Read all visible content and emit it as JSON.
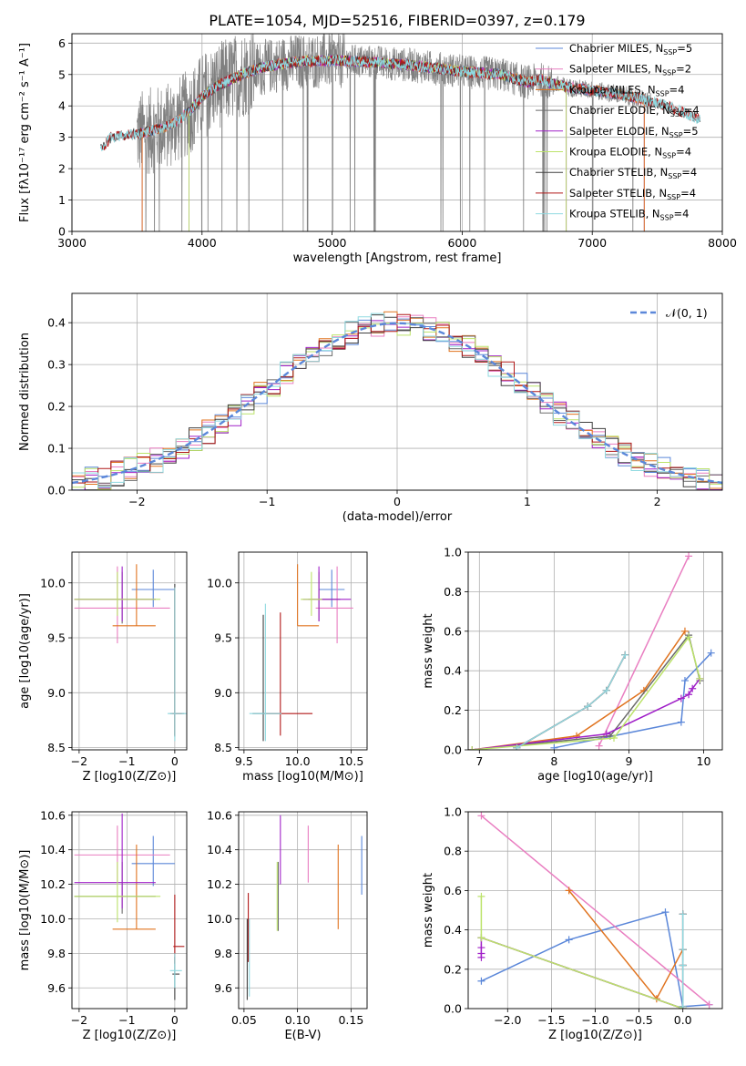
{
  "figure_title": "PLATE=1054, MJD=52516, FIBERID=0397, z=0.179",
  "colors": {
    "chabrier_miles": "#5b87d9",
    "salpeter_miles": "#e97ec1",
    "kroupa_miles": "#e0731f",
    "chabrier_elodie": "#6b6b6b",
    "salpeter_elodie": "#a020c8",
    "kroupa_elodie": "#bce36a",
    "chabrier_stelib": "#404040",
    "salpeter_stelib": "#b01818",
    "kroupa_stelib": "#8fd9e0",
    "data": "#808080",
    "gaussian": "#5b87d9",
    "grid": "#b0b0b0"
  },
  "legend": [
    {
      "text": "Chabrier MILES, N",
      "sub": "SSP",
      "tail": "=5",
      "color": "chabrier_miles"
    },
    {
      "text": "Salpeter MILES, N",
      "sub": "SSP",
      "tail": "=2",
      "color": "salpeter_miles"
    },
    {
      "text": "Kroupa MILES, N",
      "sub": "SSP",
      "tail": "=4",
      "color": "kroupa_miles"
    },
    {
      "text": "Chabrier ELODIE, N",
      "sub": "SSP",
      "tail": "=4",
      "color": "chabrier_elodie"
    },
    {
      "text": "Salpeter ELODIE, N",
      "sub": "SSP",
      "tail": "=5",
      "color": "salpeter_elodie"
    },
    {
      "text": "Kroupa ELODIE, N",
      "sub": "SSP",
      "tail": "=4",
      "color": "kroupa_elodie"
    },
    {
      "text": "Chabrier STELIB, N",
      "sub": "SSP",
      "tail": "=4",
      "color": "chabrier_stelib"
    },
    {
      "text": "Salpeter STELIB, N",
      "sub": "SSP",
      "tail": "=4",
      "color": "salpeter_stelib"
    },
    {
      "text": "Kroupa STELIB, N",
      "sub": "SSP",
      "tail": "=4",
      "color": "kroupa_stelib"
    }
  ],
  "gauss_legend": "𝒩(0, 1)",
  "chart_data": [
    {
      "id": "spectrum",
      "type": "line",
      "xlabel": "wavelength [Angstrom, rest frame]",
      "ylabel": "Flux [fλ10⁻¹⁷ erg cm⁻² s⁻¹ A⁻¹]",
      "xlim": [
        3000,
        8000
      ],
      "ylim": [
        0,
        6.3
      ],
      "xticks": [
        3000,
        4000,
        5000,
        6000,
        7000,
        8000
      ],
      "yticks": [
        0,
        1,
        2,
        3,
        4,
        5,
        6
      ],
      "continuum": {
        "x": [
          3220,
          3300,
          3400,
          3500,
          3600,
          3700,
          3800,
          3900,
          4000,
          4100,
          4200,
          4300,
          4400,
          4500,
          4700,
          5000,
          5300,
          5600,
          6000,
          6300,
          6500,
          6600,
          6700,
          6800,
          7000,
          7300,
          7500,
          7700,
          7830
        ],
        "y": [
          2.6,
          3.0,
          3.05,
          3.1,
          3.2,
          3.3,
          3.5,
          3.8,
          4.3,
          4.6,
          4.8,
          5.0,
          5.15,
          5.25,
          5.4,
          5.45,
          5.4,
          5.3,
          5.1,
          5.0,
          4.75,
          4.85,
          4.7,
          4.6,
          4.5,
          4.3,
          4.1,
          3.8,
          3.55
        ]
      }
    },
    {
      "id": "residuals",
      "type": "step",
      "xlabel": "(data-model)/error",
      "ylabel": "Normed distribution",
      "xlim": [
        -2.5,
        2.5
      ],
      "ylim": [
        0,
        0.47
      ],
      "xticks": [
        -2,
        -1,
        0,
        1,
        2
      ],
      "yticks": [
        0.0,
        0.1,
        0.2,
        0.3,
        0.4
      ],
      "gaussian": {
        "mu": 0,
        "sigma": 1
      }
    },
    {
      "id": "age_vs_Z",
      "type": "errorbar",
      "xlabel": "Z [log10(Z/Z⊙)]",
      "ylabel": "age  [log10(age/yr)]",
      "xlim": [
        -2.15,
        0.25
      ],
      "ylim": [
        8.48,
        10.28
      ],
      "xticks": [
        -2,
        -1,
        0
      ],
      "yticks": [
        8.5,
        9.0,
        9.5,
        10.0
      ],
      "points": [
        {
          "s": "chabrier_miles",
          "x": -0.45,
          "xerr": [
            0.45,
            0.45
          ],
          "y": 9.94,
          "yerr": [
            0.16,
            0.18
          ]
        },
        {
          "s": "salpeter_miles",
          "x": -1.2,
          "xerr": [
            0.9,
            1.1
          ],
          "y": 9.77,
          "yerr": [
            0.32,
            0.38
          ]
        },
        {
          "s": "kroupa_miles",
          "x": -0.8,
          "xerr": [
            0.5,
            0.4
          ],
          "y": 9.61,
          "yerr": [
            0.0,
            0.56
          ]
        },
        {
          "s": "chabrier_elodie",
          "x": -1.1,
          "xerr": [
            1.0,
            0.7
          ],
          "y": 9.85,
          "yerr": [
            0.22,
            0.25
          ]
        },
        {
          "s": "salpeter_elodie",
          "x": -1.1,
          "xerr": [
            1.0,
            0.7
          ],
          "y": 9.85,
          "yerr": [
            0.2,
            0.3
          ]
        },
        {
          "s": "kroupa_elodie",
          "x": -1.2,
          "xerr": [
            0.9,
            0.9
          ],
          "y": 9.85,
          "yerr": [
            0.15,
            0.25
          ]
        },
        {
          "s": "chabrier_stelib",
          "x": 0.0,
          "xerr": [
            0.1,
            0.2
          ],
          "y": 8.81,
          "yerr": [
            0.21,
            1.18
          ]
        },
        {
          "s": "salpeter_stelib",
          "x": 0.0,
          "xerr": [
            0.05,
            0.15
          ],
          "y": 8.81,
          "yerr": [
            0.2,
            1.15
          ]
        },
        {
          "s": "kroupa_stelib",
          "x": 0.0,
          "xerr": [
            0.15,
            0.25
          ],
          "y": 8.81,
          "yerr": [
            0.25,
            1.15
          ]
        }
      ]
    },
    {
      "id": "age_vs_mass",
      "type": "errorbar",
      "xlabel": "mass [log10(M/M⊙)]",
      "ylabel": "",
      "xlim": [
        9.45,
        10.65
      ],
      "ylim": [
        8.48,
        10.28
      ],
      "xticks": [
        9.5,
        10.0,
        10.5
      ],
      "yticks": [
        8.5,
        9.0,
        9.5,
        10.0
      ],
      "points": [
        {
          "s": "chabrier_miles",
          "x": 10.32,
          "xerr": [
            0.12,
            0.12
          ],
          "y": 9.94,
          "yerr": [
            0.16,
            0.18
          ]
        },
        {
          "s": "salpeter_miles",
          "x": 10.37,
          "xerr": [
            0.2,
            0.15
          ],
          "y": 9.77,
          "yerr": [
            0.32,
            0.38
          ]
        },
        {
          "s": "kroupa_miles",
          "x": 10.0,
          "xerr": [
            0.0,
            0.2
          ],
          "y": 9.61,
          "yerr": [
            0.0,
            0.56
          ]
        },
        {
          "s": "chabrier_elodie",
          "x": 10.2,
          "xerr": [
            0.1,
            0.2
          ],
          "y": 9.85,
          "yerr": [
            0.2,
            0.25
          ]
        },
        {
          "s": "salpeter_elodie",
          "x": 10.2,
          "xerr": [
            0.15,
            0.3
          ],
          "y": 9.85,
          "yerr": [
            0.2,
            0.3
          ]
        },
        {
          "s": "kroupa_elodie",
          "x": 10.13,
          "xerr": [
            0.1,
            0.1
          ],
          "y": 9.85,
          "yerr": [
            0.15,
            0.25
          ]
        },
        {
          "s": "chabrier_stelib",
          "x": 9.68,
          "xerr": [
            0.1,
            0.15
          ],
          "y": 8.81,
          "yerr": [
            0.25,
            0.9
          ]
        },
        {
          "s": "salpeter_stelib",
          "x": 9.84,
          "xerr": [
            0.15,
            0.3
          ],
          "y": 8.81,
          "yerr": [
            0.2,
            0.92
          ]
        },
        {
          "s": "kroupa_stelib",
          "x": 9.7,
          "xerr": [
            0.15,
            0.15
          ],
          "y": 8.81,
          "yerr": [
            0.25,
            1.0
          ]
        }
      ]
    },
    {
      "id": "massweight_vs_age",
      "type": "line",
      "xlabel": "age  [log10(age/yr)]",
      "ylabel": "mass weight",
      "xlim": [
        6.85,
        10.25
      ],
      "ylim": [
        0,
        1
      ],
      "xticks": [
        7,
        8,
        9,
        10
      ],
      "yticks": [
        0.0,
        0.2,
        0.4,
        0.6,
        0.8,
        1.0
      ],
      "series": [
        {
          "s": "chabrier_miles",
          "x": [
            8.0,
            9.7,
            9.75,
            10.1
          ],
          "y": [
            0.01,
            0.14,
            0.35,
            0.49
          ]
        },
        {
          "s": "salpeter_miles",
          "x": [
            8.6,
            9.8
          ],
          "y": [
            0.02,
            0.98
          ]
        },
        {
          "s": "kroupa_miles",
          "x": [
            6.9,
            8.3,
            9.2,
            9.75
          ],
          "y": [
            0.0,
            0.07,
            0.3,
            0.6
          ]
        },
        {
          "s": "chabrier_elodie",
          "x": [
            6.9,
            8.75,
            9.8,
            9.95
          ],
          "y": [
            0.0,
            0.07,
            0.58,
            0.35
          ]
        },
        {
          "s": "salpeter_elodie",
          "x": [
            6.9,
            8.7,
            9.7,
            9.8,
            9.85,
            9.95
          ],
          "y": [
            0.0,
            0.08,
            0.26,
            0.28,
            0.31,
            0.36
          ]
        },
        {
          "s": "kroupa_elodie",
          "x": [
            6.9,
            8.8,
            9.8,
            9.95
          ],
          "y": [
            0.0,
            0.06,
            0.57,
            0.36
          ]
        },
        {
          "s": "chabrier_stelib",
          "x": [
            7.5,
            8.45,
            8.7,
            8.95
          ],
          "y": [
            0.01,
            0.22,
            0.3,
            0.48
          ]
        },
        {
          "s": "salpeter_stelib",
          "x": [
            7.5,
            8.45,
            8.7,
            8.95
          ],
          "y": [
            0.01,
            0.22,
            0.3,
            0.48
          ]
        },
        {
          "s": "kroupa_stelib",
          "x": [
            7.5,
            8.45,
            8.7,
            8.95
          ],
          "y": [
            0.01,
            0.22,
            0.3,
            0.48
          ]
        }
      ]
    },
    {
      "id": "mass_vs_Z",
      "type": "errorbar",
      "xlabel": "Z [log10(Z/Z⊙)]",
      "ylabel": "mass [log10(M/M⊙)]",
      "xlim": [
        -2.15,
        0.25
      ],
      "ylim": [
        9.48,
        10.62
      ],
      "xticks": [
        -2,
        -1,
        0
      ],
      "yticks": [
        9.6,
        9.8,
        10.0,
        10.2,
        10.4,
        10.6
      ],
      "points": [
        {
          "s": "chabrier_miles",
          "x": -0.45,
          "xerr": [
            0.45,
            0.45
          ],
          "y": 10.32,
          "yerr": [
            0.13,
            0.16
          ]
        },
        {
          "s": "salpeter_miles",
          "x": -1.2,
          "xerr": [
            0.9,
            1.1
          ],
          "y": 10.37,
          "yerr": [
            0.16,
            0.17
          ]
        },
        {
          "s": "kroupa_miles",
          "x": -0.8,
          "xerr": [
            0.5,
            0.4
          ],
          "y": 9.94,
          "yerr": [
            0.0,
            0.49
          ]
        },
        {
          "s": "chabrier_elodie",
          "x": -1.1,
          "xerr": [
            1.0,
            0.7
          ],
          "y": 10.13,
          "yerr": [
            0.1,
            0.2
          ]
        },
        {
          "s": "salpeter_elodie",
          "x": -1.1,
          "xerr": [
            1.0,
            0.7
          ],
          "y": 10.21,
          "yerr": [
            0.15,
            0.4
          ]
        },
        {
          "s": "kroupa_elodie",
          "x": -1.2,
          "xerr": [
            0.9,
            0.9
          ],
          "y": 10.13,
          "yerr": [
            0.15,
            0.2
          ]
        },
        {
          "s": "chabrier_stelib",
          "x": 0.0,
          "xerr": [
            0.05,
            0.1
          ],
          "y": 9.68,
          "yerr": [
            0.15,
            0.1
          ]
        },
        {
          "s": "salpeter_stelib",
          "x": 0.0,
          "xerr": [
            0.03,
            0.2
          ],
          "y": 9.84,
          "yerr": [
            0.1,
            0.3
          ]
        },
        {
          "s": "kroupa_stelib",
          "x": 0.0,
          "xerr": [
            0.1,
            0.15
          ],
          "y": 9.7,
          "yerr": [
            0.1,
            0.1
          ]
        }
      ]
    },
    {
      "id": "mass_vs_ebv",
      "type": "errorbar",
      "xlabel": "E(B-V)",
      "ylabel": "",
      "xlim": [
        0.045,
        0.165
      ],
      "ylim": [
        9.48,
        10.62
      ],
      "xticks": [
        0.05,
        0.1,
        0.15
      ],
      "yticks": [
        9.6,
        9.8,
        10.0,
        10.2,
        10.4,
        10.6
      ],
      "points": [
        {
          "s": "chabrier_miles",
          "x": 0.16,
          "y": 10.32,
          "yerr": [
            0.18,
            0.16
          ]
        },
        {
          "s": "salpeter_miles",
          "x": 0.11,
          "y": 10.37,
          "yerr": [
            0.16,
            0.17
          ]
        },
        {
          "s": "kroupa_miles",
          "x": 0.138,
          "y": 10.19,
          "yerr": [
            0.25,
            0.24
          ]
        },
        {
          "s": "chabrier_elodie",
          "x": 0.082,
          "y": 10.13,
          "yerr": [
            0.2,
            0.2
          ]
        },
        {
          "s": "salpeter_elodie",
          "x": 0.084,
          "y": 10.37,
          "yerr": [
            0.17,
            0.23
          ]
        },
        {
          "s": "kroupa_elodie",
          "x": 0.081,
          "y": 10.13,
          "yerr": [
            0.2,
            0.2
          ]
        },
        {
          "s": "chabrier_stelib",
          "x": 0.053,
          "y": 9.75,
          "yerr": [
            0.22,
            0.25
          ]
        },
        {
          "s": "salpeter_stelib",
          "x": 0.054,
          "y": 9.9,
          "yerr": [
            0.15,
            0.25
          ]
        },
        {
          "s": "kroupa_stelib",
          "x": 0.055,
          "y": 9.75,
          "yerr": [
            0.2,
            0.25
          ]
        }
      ]
    },
    {
      "id": "massweight_vs_Z",
      "type": "line",
      "xlabel": "Z [log10(Z/Z⊙)]",
      "ylabel": "mass weight",
      "xlim": [
        -2.45,
        0.45
      ],
      "ylim": [
        0,
        1
      ],
      "xticks": [
        -2.0,
        -1.5,
        -1.0,
        -0.5,
        0.0
      ],
      "yticks": [
        0.0,
        0.2,
        0.4,
        0.6,
        0.8,
        1.0
      ],
      "series": [
        {
          "s": "chabrier_miles",
          "x": [
            -2.3,
            -1.3,
            -0.2,
            0.0,
            0.3
          ],
          "y": [
            0.14,
            0.35,
            0.49,
            0.01,
            0.02
          ]
        },
        {
          "s": "salpeter_miles",
          "x": [
            -2.3,
            0.3
          ],
          "y": [
            0.98,
            0.02
          ]
        },
        {
          "s": "kroupa_miles",
          "x": [
            -1.3,
            -0.3,
            0.0
          ],
          "y": [
            0.6,
            0.05,
            0.3
          ]
        },
        {
          "s": "chabrier_elodie",
          "x": [
            -2.3,
            0.0
          ],
          "y": [
            0.36,
            0.0
          ]
        },
        {
          "s": "salpeter_elodie",
          "x": [
            -2.3,
            -2.3,
            -2.3,
            -2.3,
            0.0
          ],
          "y": [
            0.26,
            0.28,
            0.31,
            0.36,
            0.0
          ]
        },
        {
          "s": "kroupa_elodie",
          "x": [
            -2.3,
            -2.3,
            0.0
          ],
          "y": [
            0.57,
            0.36,
            0.0
          ]
        },
        {
          "s": "chabrier_stelib",
          "x": [
            0.0,
            0.0,
            0.0,
            0.0
          ],
          "y": [
            0.01,
            0.22,
            0.3,
            0.48
          ]
        },
        {
          "s": "salpeter_stelib",
          "x": [
            0.0,
            0.0,
            0.0,
            0.0
          ],
          "y": [
            0.01,
            0.22,
            0.3,
            0.48
          ]
        },
        {
          "s": "kroupa_stelib",
          "x": [
            0.0,
            0.0,
            0.0,
            0.0
          ],
          "y": [
            0.01,
            0.22,
            0.3,
            0.48
          ]
        }
      ]
    }
  ]
}
